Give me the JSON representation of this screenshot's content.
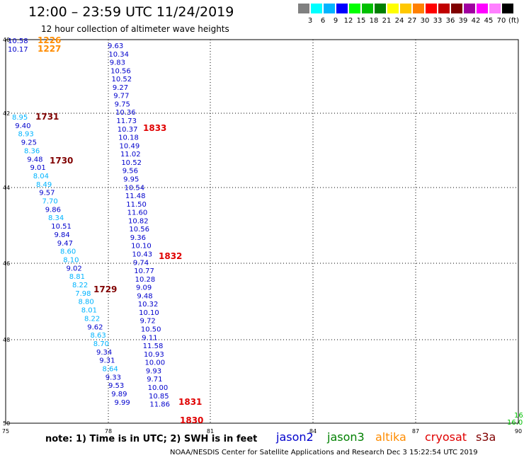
{
  "title": "12:00 – 23:59 UTC 11/24/2019",
  "subtitle": "12 hour collection of altimeter wave heights",
  "legend": {
    "unit": "(ft)",
    "colors": [
      "#808080",
      "#00ffff",
      "#00b4ff",
      "#0000ff",
      "#00ff00",
      "#00c000",
      "#008000",
      "#ffff00",
      "#ffc800",
      "#ff8000",
      "#ff0000",
      "#c00000",
      "#800000",
      "#a000a0",
      "#ff00ff",
      "#ff80ff",
      "#000000"
    ],
    "labels": [
      "3",
      "6",
      "9",
      "12",
      "15",
      "18",
      "21",
      "24",
      "27",
      "30",
      "33",
      "36",
      "39",
      "42",
      "45",
      "70"
    ]
  },
  "axes": {
    "lon_ticks": [
      "75",
      "78",
      "81",
      "84",
      "87",
      "90"
    ],
    "lat_ticks": [
      "40",
      "42",
      "44",
      "46",
      "48",
      "50"
    ]
  },
  "note": "note: 1) Time is in UTC; 2) SWH is in feet",
  "satellites": [
    {
      "name": "jason2",
      "color": "#0000cc"
    },
    {
      "name": "jason3",
      "color": "#008000"
    },
    {
      "name": "altika",
      "color": "#ff8c00"
    },
    {
      "name": "cryosat",
      "color": "#e00000"
    },
    {
      "name": "s3a",
      "color": "#800000"
    }
  ],
  "footer": "NOAA/NESDIS Center for Satellite Applications and Research    Dec  3 15:22:54 UTC 2019",
  "chart_data": {
    "type": "scatter",
    "xlabel": "",
    "ylabel": "",
    "xlim": [
      75,
      90
    ],
    "ylim": [
      40,
      50
    ],
    "track_a": [
      {
        "v": "10.58",
        "c": "#0000cc"
      },
      {
        "v": "10.17",
        "c": "#0000cc"
      }
    ],
    "track_a_times": [
      {
        "v": "1226",
        "c": "#ff8c00"
      },
      {
        "v": "1227",
        "c": "#ff8c00"
      }
    ],
    "track_b": [
      {
        "v": "8.95",
        "c": "#00b4ff"
      },
      {
        "v": "9.40",
        "c": "#0000cc"
      },
      {
        "v": "8.93",
        "c": "#00b4ff"
      },
      {
        "v": "9.25",
        "c": "#0000cc"
      },
      {
        "v": "8.36",
        "c": "#00b4ff"
      },
      {
        "v": "9.48",
        "c": "#0000cc"
      },
      {
        "v": "9.01",
        "c": "#0000cc"
      },
      {
        "v": "8.04",
        "c": "#00b4ff"
      },
      {
        "v": "8.49",
        "c": "#00b4ff"
      },
      {
        "v": "9.57",
        "c": "#0000cc"
      },
      {
        "v": "7.70",
        "c": "#00b4ff"
      },
      {
        "v": "9.86",
        "c": "#0000cc"
      },
      {
        "v": "8.34",
        "c": "#00b4ff"
      },
      {
        "v": "10.51",
        "c": "#0000cc"
      },
      {
        "v": "9.84",
        "c": "#0000cc"
      },
      {
        "v": "9.47",
        "c": "#0000cc"
      },
      {
        "v": "8.60",
        "c": "#00b4ff"
      },
      {
        "v": "8.10",
        "c": "#00b4ff"
      },
      {
        "v": "9.02",
        "c": "#0000cc"
      },
      {
        "v": "8.81",
        "c": "#00b4ff"
      },
      {
        "v": "8.22",
        "c": "#00b4ff"
      },
      {
        "v": "7.98",
        "c": "#00b4ff"
      },
      {
        "v": "8.80",
        "c": "#00b4ff"
      },
      {
        "v": "8.01",
        "c": "#00b4ff"
      },
      {
        "v": "8.22",
        "c": "#00b4ff"
      },
      {
        "v": "9.62",
        "c": "#0000cc"
      },
      {
        "v": "8.63",
        "c": "#00b4ff"
      },
      {
        "v": "8.70",
        "c": "#00b4ff"
      },
      {
        "v": "9.34",
        "c": "#0000cc"
      },
      {
        "v": "9.31",
        "c": "#0000cc"
      },
      {
        "v": "8.64",
        "c": "#00b4ff"
      },
      {
        "v": "9.33",
        "c": "#0000cc"
      },
      {
        "v": "9.53",
        "c": "#0000cc"
      },
      {
        "v": "9.89",
        "c": "#0000cc"
      },
      {
        "v": "9.99",
        "c": "#0000cc"
      }
    ],
    "track_b_times": [
      {
        "v": "1731",
        "c": "#800000"
      },
      {
        "v": "1730",
        "c": "#800000"
      },
      {
        "v": "1729",
        "c": "#800000"
      }
    ],
    "track_c": [
      {
        "v": "9.63",
        "c": "#0000cc"
      },
      {
        "v": "10.34",
        "c": "#0000cc"
      },
      {
        "v": "9.83",
        "c": "#0000cc"
      },
      {
        "v": "10.56",
        "c": "#0000cc"
      },
      {
        "v": "10.52",
        "c": "#0000cc"
      },
      {
        "v": "9.27",
        "c": "#0000cc"
      },
      {
        "v": "9.77",
        "c": "#0000cc"
      },
      {
        "v": "9.75",
        "c": "#0000cc"
      },
      {
        "v": "10.36",
        "c": "#0000cc"
      },
      {
        "v": "11.73",
        "c": "#0000cc"
      },
      {
        "v": "10.37",
        "c": "#0000cc"
      },
      {
        "v": "10.18",
        "c": "#0000cc"
      },
      {
        "v": "10.49",
        "c": "#0000cc"
      },
      {
        "v": "11.02",
        "c": "#0000cc"
      },
      {
        "v": "10.52",
        "c": "#0000cc"
      },
      {
        "v": "9.56",
        "c": "#0000cc"
      },
      {
        "v": "9.95",
        "c": "#0000cc"
      },
      {
        "v": "10.54",
        "c": "#0000cc"
      },
      {
        "v": "11.48",
        "c": "#0000cc"
      },
      {
        "v": "11.50",
        "c": "#0000cc"
      },
      {
        "v": "11.60",
        "c": "#0000cc"
      },
      {
        "v": "10.82",
        "c": "#0000cc"
      },
      {
        "v": "10.56",
        "c": "#0000cc"
      },
      {
        "v": "9.36",
        "c": "#0000cc"
      },
      {
        "v": "10.10",
        "c": "#0000cc"
      },
      {
        "v": "10.43",
        "c": "#0000cc"
      },
      {
        "v": "9.74",
        "c": "#0000cc"
      },
      {
        "v": "10.77",
        "c": "#0000cc"
      },
      {
        "v": "10.28",
        "c": "#0000cc"
      },
      {
        "v": "9.09",
        "c": "#0000cc"
      },
      {
        "v": "9.48",
        "c": "#0000cc"
      },
      {
        "v": "10.32",
        "c": "#0000cc"
      },
      {
        "v": "10.10",
        "c": "#0000cc"
      },
      {
        "v": "9.72",
        "c": "#0000cc"
      },
      {
        "v": "10.50",
        "c": "#0000cc"
      },
      {
        "v": "9.11",
        "c": "#0000cc"
      },
      {
        "v": "11.58",
        "c": "#0000cc"
      },
      {
        "v": "10.93",
        "c": "#0000cc"
      },
      {
        "v": "10.00",
        "c": "#0000cc"
      },
      {
        "v": "9.93",
        "c": "#0000cc"
      },
      {
        "v": "9.71",
        "c": "#0000cc"
      },
      {
        "v": "10.00",
        "c": "#0000cc"
      },
      {
        "v": "10.85",
        "c": "#0000cc"
      },
      {
        "v": "11.86",
        "c": "#0000cc"
      }
    ],
    "track_c_times": [
      {
        "v": "1833",
        "c": "#e00000"
      },
      {
        "v": "1832",
        "c": "#e00000"
      },
      {
        "v": "1831",
        "c": "#e00000"
      },
      {
        "v": "1830",
        "c": "#e00000"
      }
    ],
    "track_d": [
      {
        "v": "16.",
        "c": "#00c000"
      },
      {
        "v": "16.0",
        "c": "#00c000"
      }
    ]
  }
}
